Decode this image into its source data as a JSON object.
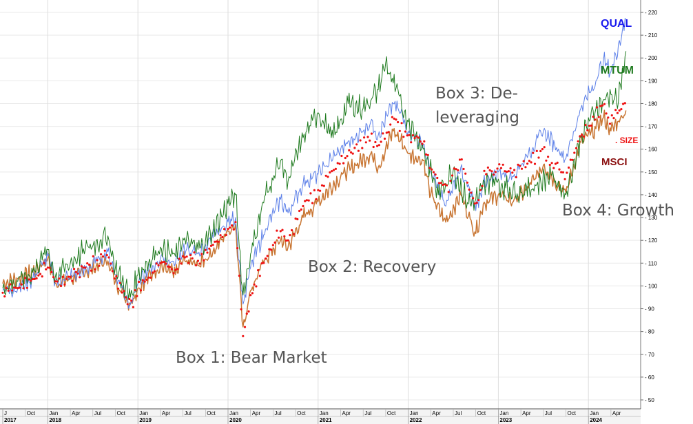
{
  "chart_data": {
    "type": "line",
    "title": "",
    "xlabel": "",
    "ylabel": "",
    "ylim": [
      45,
      225
    ],
    "y_ticks": [
      50,
      60,
      70,
      80,
      90,
      100,
      110,
      120,
      130,
      140,
      150,
      160,
      170,
      180,
      190,
      200,
      210,
      220
    ],
    "x_month_ticks": [
      {
        "label": "J",
        "date": "2017-07"
      },
      {
        "label": "Oct",
        "date": "2017-10"
      },
      {
        "label": "Jan",
        "date": "2018-01"
      },
      {
        "label": "Apr",
        "date": "2018-04"
      },
      {
        "label": "Jul",
        "date": "2018-07"
      },
      {
        "label": "Oct",
        "date": "2018-10"
      },
      {
        "label": "Jan",
        "date": "2019-01"
      },
      {
        "label": "Apr",
        "date": "2019-04"
      },
      {
        "label": "Jul",
        "date": "2019-07"
      },
      {
        "label": "Oct",
        "date": "2019-10"
      },
      {
        "label": "Jan",
        "date": "2020-01"
      },
      {
        "label": "Apr",
        "date": "2020-04"
      },
      {
        "label": "Jul",
        "date": "2020-07"
      },
      {
        "label": "Oct",
        "date": "2020-10"
      },
      {
        "label": "Jan",
        "date": "2021-01"
      },
      {
        "label": "Apr",
        "date": "2021-04"
      },
      {
        "label": "Jul",
        "date": "2021-07"
      },
      {
        "label": "Oct",
        "date": "2021-10"
      },
      {
        "label": "Jan",
        "date": "2022-01"
      },
      {
        "label": "Apr",
        "date": "2022-04"
      },
      {
        "label": "Jul",
        "date": "2022-07"
      },
      {
        "label": "Oct",
        "date": "2022-10"
      },
      {
        "label": "Jan",
        "date": "2023-01"
      },
      {
        "label": "Apr",
        "date": "2023-04"
      },
      {
        "label": "Jul",
        "date": "2023-07"
      },
      {
        "label": "Oct",
        "date": "2023-10"
      },
      {
        "label": "Jan",
        "date": "2024-01"
      },
      {
        "label": "Apr",
        "date": "2024-04"
      }
    ],
    "x_year_ticks": [
      {
        "label": "2017",
        "date": "2017-07"
      },
      {
        "label": "2018",
        "date": "2018-01"
      },
      {
        "label": "2019",
        "date": "2019-01"
      },
      {
        "label": "2020",
        "date": "2020-01"
      },
      {
        "label": "2021",
        "date": "2021-01"
      },
      {
        "label": "2022",
        "date": "2022-01"
      },
      {
        "label": "2023",
        "date": "2023-01"
      },
      {
        "label": "2024",
        "date": "2024-01"
      }
    ],
    "grid": true,
    "series": [
      {
        "name": "QUAL",
        "style": "line",
        "color": "#5b7fe8",
        "points": [
          [
            "2017-07",
            98
          ],
          [
            "2017-09",
            99
          ],
          [
            "2017-11",
            103
          ],
          [
            "2018-01",
            113
          ],
          [
            "2018-02",
            102
          ],
          [
            "2018-04",
            104
          ],
          [
            "2018-06",
            107
          ],
          [
            "2018-09",
            115
          ],
          [
            "2018-10",
            105
          ],
          [
            "2018-12",
            92
          ],
          [
            "2019-01",
            101
          ],
          [
            "2019-04",
            112
          ],
          [
            "2019-06",
            110
          ],
          [
            "2019-07",
            116
          ],
          [
            "2019-09",
            114
          ],
          [
            "2019-11",
            121
          ],
          [
            "2020-01",
            128
          ],
          [
            "2020-02",
            130
          ],
          [
            "2020-03",
            92
          ],
          [
            "2020-04",
            108
          ],
          [
            "2020-06",
            125
          ],
          [
            "2020-08",
            138
          ],
          [
            "2020-09",
            132
          ],
          [
            "2020-11",
            145
          ],
          [
            "2021-01",
            149
          ],
          [
            "2021-04",
            160
          ],
          [
            "2021-06",
            165
          ],
          [
            "2021-08",
            172
          ],
          [
            "2021-09",
            166
          ],
          [
            "2021-11",
            180
          ],
          [
            "2021-12",
            176
          ],
          [
            "2022-01",
            168
          ],
          [
            "2022-03",
            162
          ],
          [
            "2022-04",
            150
          ],
          [
            "2022-06",
            135
          ],
          [
            "2022-08",
            152
          ],
          [
            "2022-10",
            133
          ],
          [
            "2022-11",
            145
          ],
          [
            "2023-01",
            150
          ],
          [
            "2023-03",
            148
          ],
          [
            "2023-05",
            158
          ],
          [
            "2023-07",
            168
          ],
          [
            "2023-09",
            160
          ],
          [
            "2023-10",
            156
          ],
          [
            "2023-12",
            178
          ],
          [
            "2024-02",
            190
          ],
          [
            "2024-03",
            199
          ],
          [
            "2024-04",
            194
          ],
          [
            "2024-06",
            217
          ]
        ]
      },
      {
        "name": "MTUM",
        "style": "line",
        "color": "#1e7a1e",
        "points": [
          [
            "2017-07",
            99
          ],
          [
            "2017-09",
            102
          ],
          [
            "2017-11",
            106
          ],
          [
            "2018-01",
            116
          ],
          [
            "2018-02",
            104
          ],
          [
            "2018-04",
            110
          ],
          [
            "2018-06",
            116
          ],
          [
            "2018-09",
            122
          ],
          [
            "2018-10",
            108
          ],
          [
            "2018-12",
            95
          ],
          [
            "2019-01",
            105
          ],
          [
            "2019-04",
            117
          ],
          [
            "2019-06",
            113
          ],
          [
            "2019-07",
            121
          ],
          [
            "2019-09",
            116
          ],
          [
            "2019-11",
            124
          ],
          [
            "2020-01",
            136
          ],
          [
            "2020-02",
            140
          ],
          [
            "2020-03",
            96
          ],
          [
            "2020-04",
            114
          ],
          [
            "2020-06",
            140
          ],
          [
            "2020-08",
            155
          ],
          [
            "2020-09",
            146
          ],
          [
            "2020-11",
            165
          ],
          [
            "2021-01",
            176
          ],
          [
            "2021-03",
            165
          ],
          [
            "2021-05",
            180
          ],
          [
            "2021-07",
            178
          ],
          [
            "2021-09",
            186
          ],
          [
            "2021-10",
            198
          ],
          [
            "2021-11",
            189
          ],
          [
            "2022-01",
            172
          ],
          [
            "2022-03",
            160
          ],
          [
            "2022-05",
            140
          ],
          [
            "2022-07",
            151
          ],
          [
            "2022-09",
            136
          ],
          [
            "2022-10",
            138
          ],
          [
            "2022-12",
            147
          ],
          [
            "2023-02",
            143
          ],
          [
            "2023-04",
            141
          ],
          [
            "2023-06",
            144
          ],
          [
            "2023-08",
            149
          ],
          [
            "2023-10",
            140
          ],
          [
            "2023-12",
            165
          ],
          [
            "2024-02",
            178
          ],
          [
            "2024-04",
            184
          ],
          [
            "2024-05",
            181
          ],
          [
            "2024-06",
            203
          ]
        ]
      },
      {
        "name": "MSCI",
        "style": "line",
        "color": "#c87532",
        "points": [
          [
            "2017-07",
            101
          ],
          [
            "2017-09",
            103
          ],
          [
            "2017-11",
            106
          ],
          [
            "2018-01",
            112
          ],
          [
            "2018-02",
            101
          ],
          [
            "2018-04",
            103
          ],
          [
            "2018-06",
            106
          ],
          [
            "2018-09",
            111
          ],
          [
            "2018-10",
            102
          ],
          [
            "2018-12",
            92
          ],
          [
            "2019-01",
            99
          ],
          [
            "2019-04",
            109
          ],
          [
            "2019-06",
            105
          ],
          [
            "2019-07",
            111
          ],
          [
            "2019-09",
            109
          ],
          [
            "2019-11",
            115
          ],
          [
            "2020-01",
            124
          ],
          [
            "2020-02",
            127
          ],
          [
            "2020-03",
            82
          ],
          [
            "2020-04",
            98
          ],
          [
            "2020-06",
            112
          ],
          [
            "2020-08",
            120
          ],
          [
            "2020-09",
            117
          ],
          [
            "2020-11",
            130
          ],
          [
            "2021-01",
            137
          ],
          [
            "2021-04",
            148
          ],
          [
            "2021-06",
            153
          ],
          [
            "2021-08",
            158
          ],
          [
            "2021-09",
            152
          ],
          [
            "2021-11",
            168
          ],
          [
            "2021-12",
            164
          ],
          [
            "2022-01",
            158
          ],
          [
            "2022-03",
            155
          ],
          [
            "2022-04",
            140
          ],
          [
            "2022-06",
            128
          ],
          [
            "2022-08",
            140
          ],
          [
            "2022-10",
            123
          ],
          [
            "2022-11",
            136
          ],
          [
            "2023-01",
            140
          ],
          [
            "2023-03",
            137
          ],
          [
            "2023-05",
            143
          ],
          [
            "2023-07",
            153
          ],
          [
            "2023-09",
            144
          ],
          [
            "2023-10",
            141
          ],
          [
            "2023-12",
            163
          ],
          [
            "2024-02",
            169
          ],
          [
            "2024-03",
            174
          ],
          [
            "2024-04",
            168
          ],
          [
            "2024-06",
            177
          ]
        ]
      },
      {
        "name": "SIZE",
        "style": "dots",
        "color": "#ee1111",
        "points": [
          [
            "2017-07",
            97
          ],
          [
            "2017-09",
            99
          ],
          [
            "2017-11",
            103
          ],
          [
            "2018-01",
            108
          ],
          [
            "2018-02",
            102
          ],
          [
            "2018-04",
            104
          ],
          [
            "2018-06",
            108
          ],
          [
            "2018-09",
            114
          ],
          [
            "2018-10",
            103
          ],
          [
            "2018-12",
            91
          ],
          [
            "2019-01",
            99
          ],
          [
            "2019-04",
            110
          ],
          [
            "2019-06",
            107
          ],
          [
            "2019-07",
            113
          ],
          [
            "2019-09",
            111
          ],
          [
            "2019-11",
            118
          ],
          [
            "2020-01",
            125
          ],
          [
            "2020-02",
            128
          ],
          [
            "2020-03",
            78
          ],
          [
            "2020-04",
            96
          ],
          [
            "2020-06",
            112
          ],
          [
            "2020-08",
            124
          ],
          [
            "2020-09",
            120
          ],
          [
            "2020-11",
            135
          ],
          [
            "2021-01",
            142
          ],
          [
            "2021-04",
            155
          ],
          [
            "2021-06",
            160
          ],
          [
            "2021-08",
            165
          ],
          [
            "2021-09",
            160
          ],
          [
            "2021-11",
            174
          ],
          [
            "2021-12",
            170
          ],
          [
            "2022-01",
            165
          ],
          [
            "2022-03",
            163
          ],
          [
            "2022-04",
            152
          ],
          [
            "2022-06",
            142
          ],
          [
            "2022-08",
            155
          ],
          [
            "2022-10",
            133
          ],
          [
            "2022-11",
            148
          ],
          [
            "2023-01",
            152
          ],
          [
            "2023-03",
            150
          ],
          [
            "2023-05",
            155
          ],
          [
            "2023-07",
            158
          ],
          [
            "2023-09",
            152
          ],
          [
            "2023-10",
            148
          ],
          [
            "2023-12",
            166
          ],
          [
            "2024-02",
            175
          ],
          [
            "2024-03",
            179
          ],
          [
            "2024-04",
            172
          ],
          [
            "2024-06",
            180
          ]
        ]
      }
    ],
    "labels": [
      {
        "key": "QUAL",
        "text": "QUAL",
        "color": "#1a1aee"
      },
      {
        "key": "MTUM",
        "text": "MTUM",
        "color": "#1e7a1e"
      },
      {
        "key": "SIZE",
        "text": ". SIZE",
        "color": "#ee1111"
      },
      {
        "key": "MSCI",
        "text": "MSCI",
        "color": "#8b1010"
      }
    ],
    "annotations": [
      {
        "key": "box1",
        "lines": [
          "Box 1: Bear Market"
        ]
      },
      {
        "key": "box2",
        "lines": [
          "Box 2: Recovery"
        ]
      },
      {
        "key": "box3",
        "lines": [
          "Box 3: De-",
          "leveraging"
        ]
      },
      {
        "key": "box4",
        "lines": [
          "Box 4: Growth"
        ]
      }
    ]
  }
}
